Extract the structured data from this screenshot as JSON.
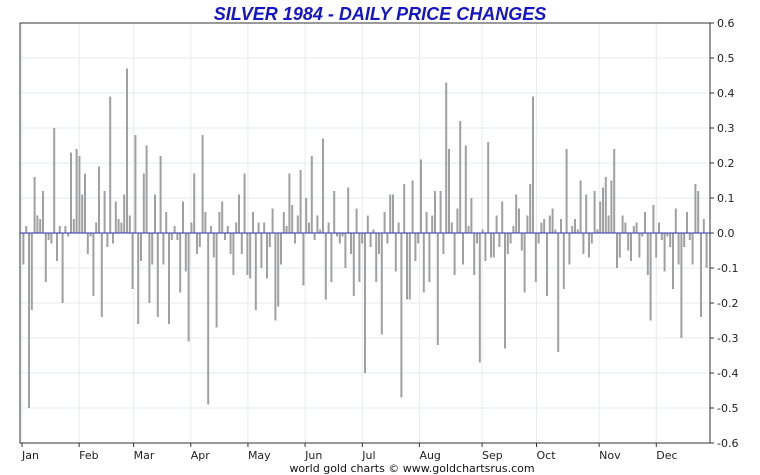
{
  "chart_data": {
    "type": "bar",
    "title": "SILVER 1984 - DAILY PRICE CHANGES",
    "footer": "world gold charts © www.goldchartsrus.com",
    "ylim": [
      -0.6,
      0.6
    ],
    "yticks": [
      0.6,
      0.5,
      0.4,
      0.3,
      0.2,
      0.1,
      0.0,
      -0.1,
      -0.2,
      -0.3,
      -0.4,
      -0.5,
      -0.6
    ],
    "ytick_labels": [
      "0.6",
      "0.5",
      "0.4",
      "0.3",
      "0.2",
      "0.1",
      "0.0",
      "-0.1",
      "-0.2",
      "-0.3",
      "-0.4",
      "-0.5",
      "-0.6"
    ],
    "months": [
      "Jan",
      "Feb",
      "Mar",
      "Apr",
      "May",
      "Jun",
      "Jul",
      "Aug",
      "Sep",
      "Oct",
      "Nov",
      "Dec"
    ],
    "grid": true,
    "colors": {
      "title": "#1515c8",
      "bars": "#a0a0a0",
      "zero_line": "#3030b0",
      "grid": "#e6ebf0",
      "axis": "#333333"
    },
    "values": [
      -0.09,
      0.02,
      -0.5,
      -0.22,
      0.16,
      0.05,
      0.04,
      0.12,
      -0.14,
      -0.02,
      -0.03,
      0.3,
      -0.08,
      0.02,
      -0.2,
      0.02,
      -0.01,
      0.23,
      0.04,
      0.24,
      0.22,
      0.11,
      0.17,
      -0.06,
      -0.01,
      -0.18,
      0.03,
      0.19,
      -0.24,
      0.12,
      -0.04,
      0.39,
      -0.03,
      0.09,
      0.04,
      0.03,
      0.11,
      0.47,
      0.05,
      -0.16,
      0.28,
      -0.26,
      -0.08,
      0.17,
      0.25,
      -0.2,
      -0.09,
      0.11,
      -0.24,
      0.22,
      -0.09,
      0.06,
      -0.26,
      -0.02,
      0.02,
      -0.02,
      -0.17,
      0.09,
      -0.11,
      -0.31,
      0.03,
      0.17,
      -0.06,
      -0.04,
      0.28,
      0.06,
      -0.49,
      0.02,
      -0.07,
      -0.27,
      0.06,
      0.09,
      -0.02,
      0.02,
      -0.06,
      -0.12,
      0.03,
      0.11,
      -0.06,
      0.17,
      -0.12,
      -0.13,
      0.06,
      -0.22,
      0.03,
      -0.1,
      0.03,
      -0.13,
      -0.04,
      0.07,
      -0.25,
      -0.21,
      -0.09,
      0.06,
      0.02,
      0.17,
      0.08,
      -0.03,
      0.05,
      0.18,
      -0.15,
      0.1,
      0.03,
      0.22,
      -0.02,
      0.05,
      0.01,
      0.27,
      -0.19,
      0.03,
      -0.14,
      0.12,
      -0.01,
      -0.03,
      -0.01,
      -0.1,
      0.13,
      -0.06,
      -0.18,
      0.07,
      -0.14,
      -0.03,
      -0.4,
      0.05,
      -0.04,
      0.01,
      -0.14,
      -0.06,
      -0.29,
      0.06,
      -0.03,
      0.11,
      0.11,
      -0.11,
      0.03,
      -0.47,
      0.14,
      -0.19,
      -0.19,
      0.15,
      -0.08,
      -0.03,
      0.21,
      -0.17,
      0.06,
      -0.14,
      0.05,
      0.12,
      -0.32,
      0.12,
      -0.06,
      0.43,
      0.24,
      0.03,
      -0.12,
      0.07,
      0.32,
      -0.09,
      0.25,
      0.02,
      0.1,
      -0.12,
      -0.03,
      -0.37,
      0.01,
      -0.08,
      0.26,
      -0.07,
      -0.07,
      0.05,
      -0.04,
      0.09,
      -0.33,
      -0.06,
      -0.03,
      0.02,
      0.11,
      0.07,
      -0.05,
      -0.17,
      0.05,
      0.14,
      0.39,
      -0.14,
      -0.03,
      0.03,
      0.04,
      -0.18,
      0.05,
      0.07,
      0.01,
      -0.34,
      0.04,
      -0.16,
      0.24,
      -0.09,
      0.02,
      0.04,
      0.01,
      0.15,
      -0.06,
      0.11,
      -0.07,
      -0.03,
      0.12,
      0.01,
      0.09,
      0.13,
      0.16,
      0.05,
      0.15,
      0.24,
      -0.1,
      -0.07,
      0.05,
      0.03,
      -0.05,
      -0.08,
      0.02,
      0.03,
      -0.07,
      -0.01,
      0.06,
      -0.12,
      -0.25,
      0.08,
      -0.07,
      0.03,
      -0.02,
      -0.11,
      -0.01,
      -0.04,
      -0.16,
      0.07,
      -0.09,
      -0.3,
      -0.04,
      0.06,
      -0.02,
      -0.09,
      0.14,
      0.12,
      -0.24,
      0.04,
      -0.1
    ]
  }
}
